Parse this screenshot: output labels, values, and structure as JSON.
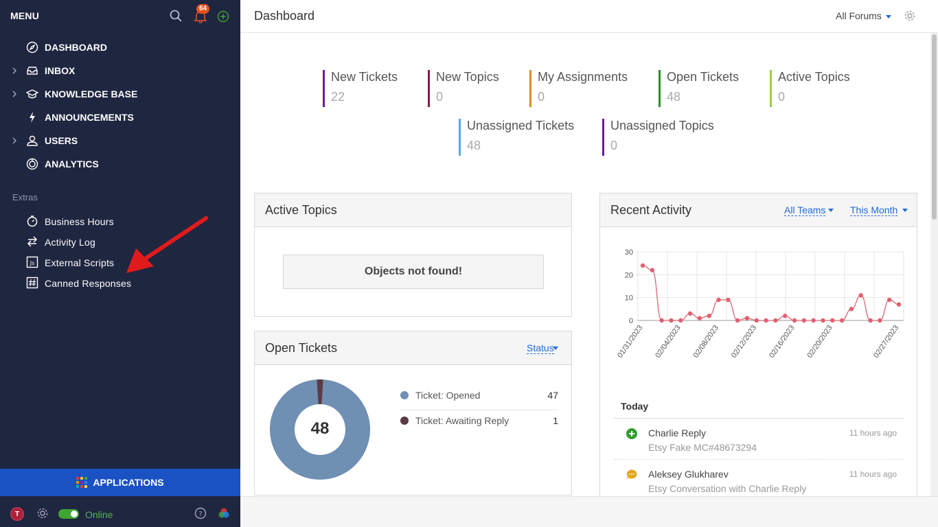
{
  "sidebar": {
    "menu_label": "MENU",
    "notification_count": "64",
    "nav": [
      {
        "label": "DASHBOARD"
      },
      {
        "label": "INBOX"
      },
      {
        "label": "KNOWLEDGE BASE"
      },
      {
        "label": "ANNOUNCEMENTS"
      },
      {
        "label": "USERS"
      },
      {
        "label": "ANALYTICS"
      }
    ],
    "extras_title": "Extras",
    "extras": [
      {
        "label": "Business Hours"
      },
      {
        "label": "Activity Log"
      },
      {
        "label": "External Scripts"
      },
      {
        "label": "Canned Responses"
      }
    ],
    "applications_label": "APPLICATIONS",
    "avatar_initial": "T",
    "status_label": "Online",
    "colors": {
      "bg": "#1f2640",
      "apps": "#1a52c4",
      "online": "#3fa534",
      "arrow": "#e01b1b"
    }
  },
  "header": {
    "title": "Dashboard",
    "forums_label": "All Forums"
  },
  "stats": [
    {
      "label": "New Tickets",
      "value": "22",
      "color": "#6a1b9a"
    },
    {
      "label": "New Topics",
      "value": "0",
      "color": "#8e1a4c"
    },
    {
      "label": "My Assignments",
      "value": "0",
      "color": "#e08a12"
    },
    {
      "label": "Open Tickets",
      "value": "48",
      "color": "#2e8b2e"
    },
    {
      "label": "Active Topics",
      "value": "0",
      "color": "#9bd043"
    },
    {
      "label": "Unassigned Tickets",
      "value": "48",
      "color": "#5aa9e6"
    },
    {
      "label": "Unassigned Topics",
      "value": "0",
      "color": "#6a1b9a"
    }
  ],
  "active_topics": {
    "title": "Active Topics",
    "empty_message": "Objects not found!"
  },
  "open_tickets": {
    "title": "Open Tickets",
    "filter_label": "Status",
    "total": "48",
    "legend": [
      {
        "label": "Ticket: Opened",
        "value": 47,
        "color": "#6f8fb3"
      },
      {
        "label": "Ticket: Awaiting Reply",
        "value": 1,
        "color": "#5a3a44"
      }
    ]
  },
  "recent_activity": {
    "title": "Recent Activity",
    "teams_label": "All Teams",
    "period_label": "This Month",
    "today_label": "Today",
    "items": [
      {
        "name": "Charlie Reply",
        "sub": "Etsy Fake MC#48673294",
        "time": "11 hours ago",
        "icon": "plus-circle-icon",
        "color": "#2e9e2e"
      },
      {
        "name": "Aleksey Glukharev",
        "sub": "Etsy Conversation with Charlie Reply",
        "time": "11 hours ago",
        "icon": "chat-bubble-icon",
        "color": "#e6a21a"
      }
    ]
  },
  "chart_data": {
    "type": "line",
    "title": "",
    "xlabel": "",
    "ylabel": "",
    "ylim": [
      0,
      30
    ],
    "yticks": [
      0,
      10,
      20,
      30
    ],
    "x": [
      "01/31/2023",
      "02/01/2023",
      "02/02/2023",
      "02/03/2023",
      "02/04/2023",
      "02/05/2023",
      "02/06/2023",
      "02/07/2023",
      "02/08/2023",
      "02/09/2023",
      "02/10/2023",
      "02/11/2023",
      "02/12/2023",
      "02/13/2023",
      "02/14/2023",
      "02/15/2023",
      "02/16/2023",
      "02/17/2023",
      "02/18/2023",
      "02/19/2023",
      "02/20/2023",
      "02/21/2023",
      "02/22/2023",
      "02/23/2023",
      "02/24/2023",
      "02/25/2023",
      "02/26/2023",
      "02/27/2023"
    ],
    "xtick_labels": [
      "01/31/2023",
      "02/04/2023",
      "02/08/2023",
      "02/12/2023",
      "02/16/2023",
      "02/20/2023",
      "02/27/2023"
    ],
    "series": [
      {
        "values": [
          24,
          22,
          0,
          0,
          0,
          3,
          1,
          2,
          9,
          9,
          0,
          1,
          0,
          0,
          0,
          2,
          0,
          0,
          0,
          0,
          0,
          0,
          5,
          11,
          0,
          0,
          9,
          7
        ],
        "color": "#e06070"
      }
    ],
    "grid": true
  }
}
